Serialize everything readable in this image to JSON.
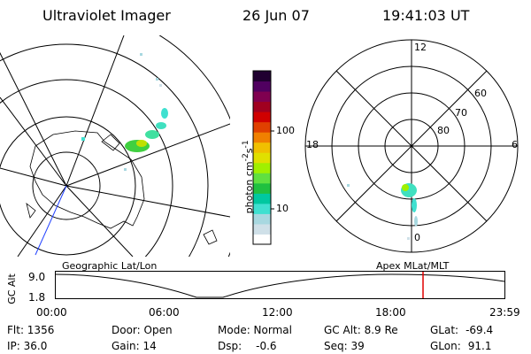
{
  "header": {
    "title": "Ultraviolet Imager",
    "date": "26 Jun 07",
    "time": "19:41:03 UT"
  },
  "colorbar": {
    "label": "photon cm",
    "label_sup1": "-2",
    "label_mid": "s",
    "label_sup2": "-1",
    "tick_100": "100",
    "tick_10": "10",
    "colors": [
      "#ffffff",
      "#cfe0e8",
      "#a8d8e0",
      "#40e0d0",
      "#00c8a0",
      "#20c040",
      "#60e040",
      "#a0f000",
      "#e0e000",
      "#f0c000",
      "#f08000",
      "#e04000",
      "#d00000",
      "#a00020",
      "#800050",
      "#500060",
      "#200030"
    ]
  },
  "polar": {
    "label_12": "12",
    "label_6": "6",
    "label_0": "0",
    "label_18": "18",
    "label_60": "60",
    "label_70": "70",
    "label_80": "80"
  },
  "timeline": {
    "left_title": "Geographic Lat/Lon",
    "right_title": "Apex MLat/MLT",
    "axis_label": "GC Alt",
    "y_top": "9.0",
    "y_bottom": "1.8",
    "ticks": [
      "00:00",
      "06:00",
      "12:00",
      "18:00",
      "23:59"
    ],
    "marker_color": "#e00000"
  },
  "status": {
    "flt": "Flt: 1356",
    "ip": "IP: 36.0",
    "door": "Door: Open",
    "gain": "Gain: 14",
    "mode": "Mode: Normal",
    "dsp_label": "Dsp:",
    "dsp_value": "-0.6",
    "gcalt": "GC Alt: 8.9 Re",
    "seq": "Seq: 39",
    "glat_label": "GLat:",
    "glat_value": "-69.4",
    "glon_label": "GLon:",
    "glon_value": "91.1"
  }
}
